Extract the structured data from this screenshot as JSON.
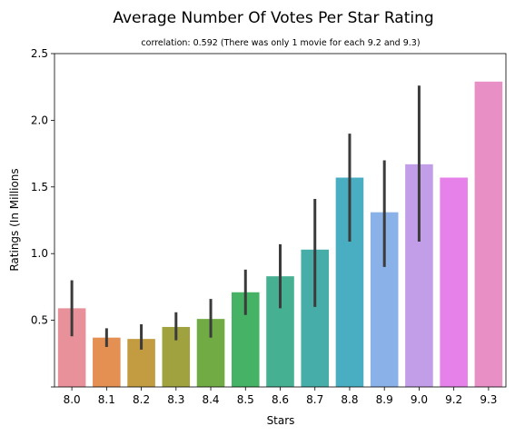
{
  "chart_data": {
    "type": "bar",
    "title": "Average Number Of Votes Per Star Rating",
    "subtitle": "correlation: 0.592 (There was only 1 movie for each 9.2 and 9.3)",
    "xlabel": "Stars",
    "ylabel": "Ratings (In Millions",
    "ylim": [
      0,
      2.5
    ],
    "yticks": [
      0.5,
      1.0,
      1.5,
      2.0,
      2.5
    ],
    "ytick_labels": [
      "0.5",
      "1.0",
      "1.5",
      "2.0",
      "2.5"
    ],
    "grid": false,
    "categories": [
      "8.0",
      "8.1",
      "8.2",
      "8.3",
      "8.4",
      "8.5",
      "8.6",
      "8.7",
      "8.8",
      "8.9",
      "9.0",
      "9.2",
      "9.3"
    ],
    "values": [
      0.59,
      0.37,
      0.36,
      0.45,
      0.51,
      0.71,
      0.83,
      1.03,
      1.57,
      1.31,
      1.67,
      1.57,
      2.29
    ],
    "error_low": [
      0.38,
      0.3,
      0.28,
      0.35,
      0.37,
      0.54,
      0.59,
      0.6,
      1.09,
      0.9,
      1.09,
      null,
      null
    ],
    "error_high": [
      0.8,
      0.44,
      0.47,
      0.56,
      0.66,
      0.88,
      1.07,
      1.41,
      1.9,
      1.7,
      2.26,
      null,
      null
    ],
    "colors": [
      "#e8919a",
      "#e39052",
      "#c39b40",
      "#a0a23f",
      "#71ab44",
      "#45b265",
      "#45b092",
      "#47ada8",
      "#4aaec3",
      "#8ab1e8",
      "#c39ee8",
      "#e581e8",
      "#e890c5"
    ],
    "error_color": "#3b3b3b"
  }
}
